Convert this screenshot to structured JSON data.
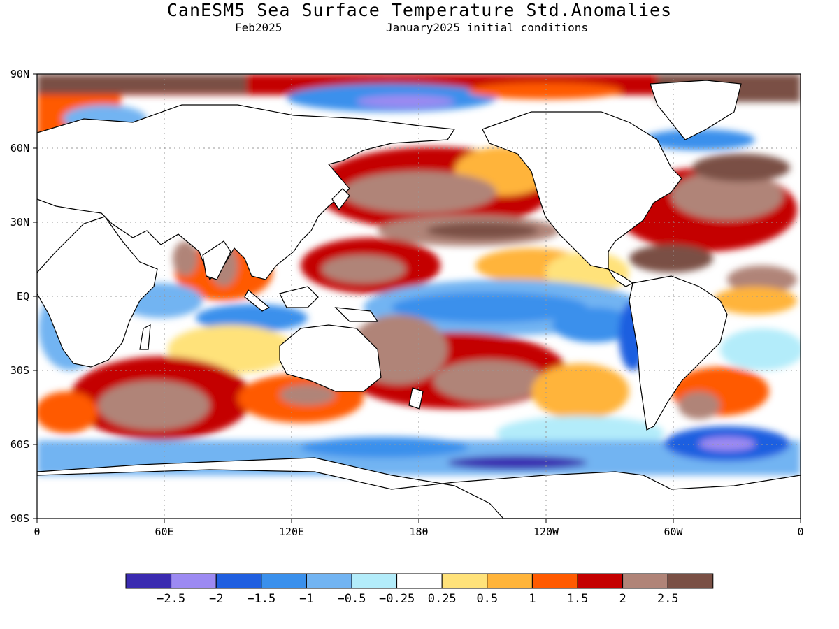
{
  "title": "CanESM5 Sea Surface Temperature Std.Anomalies",
  "subtitle_left": "Feb2025",
  "subtitle_right": "January2025 initial conditions",
  "map": {
    "lat_labels": [
      "90N",
      "60N",
      "30N",
      "EQ",
      "30S",
      "60S",
      "90S"
    ],
    "lon_labels": [
      "0",
      "60E",
      "120E",
      "180",
      "120W",
      "60W",
      "0"
    ],
    "ocean_default_color": "#ffffff",
    "land_color": "#ffffff"
  },
  "colorbar": {
    "colors": [
      "#3a2bb0",
      "#9c8af2",
      "#1f5fe0",
      "#3a90ec",
      "#72b4f2",
      "#b3ecfa",
      "#ffffff",
      "#ffe27a",
      "#ffb43a",
      "#ff5a00",
      "#c40000",
      "#b08478",
      "#7a5045"
    ],
    "labels": [
      "−2.5",
      "−2",
      "−1.5",
      "−1",
      "−0.5",
      "−0.25",
      "0.25",
      "0.5",
      "1",
      "1.5",
      "2",
      "2.5"
    ]
  }
}
